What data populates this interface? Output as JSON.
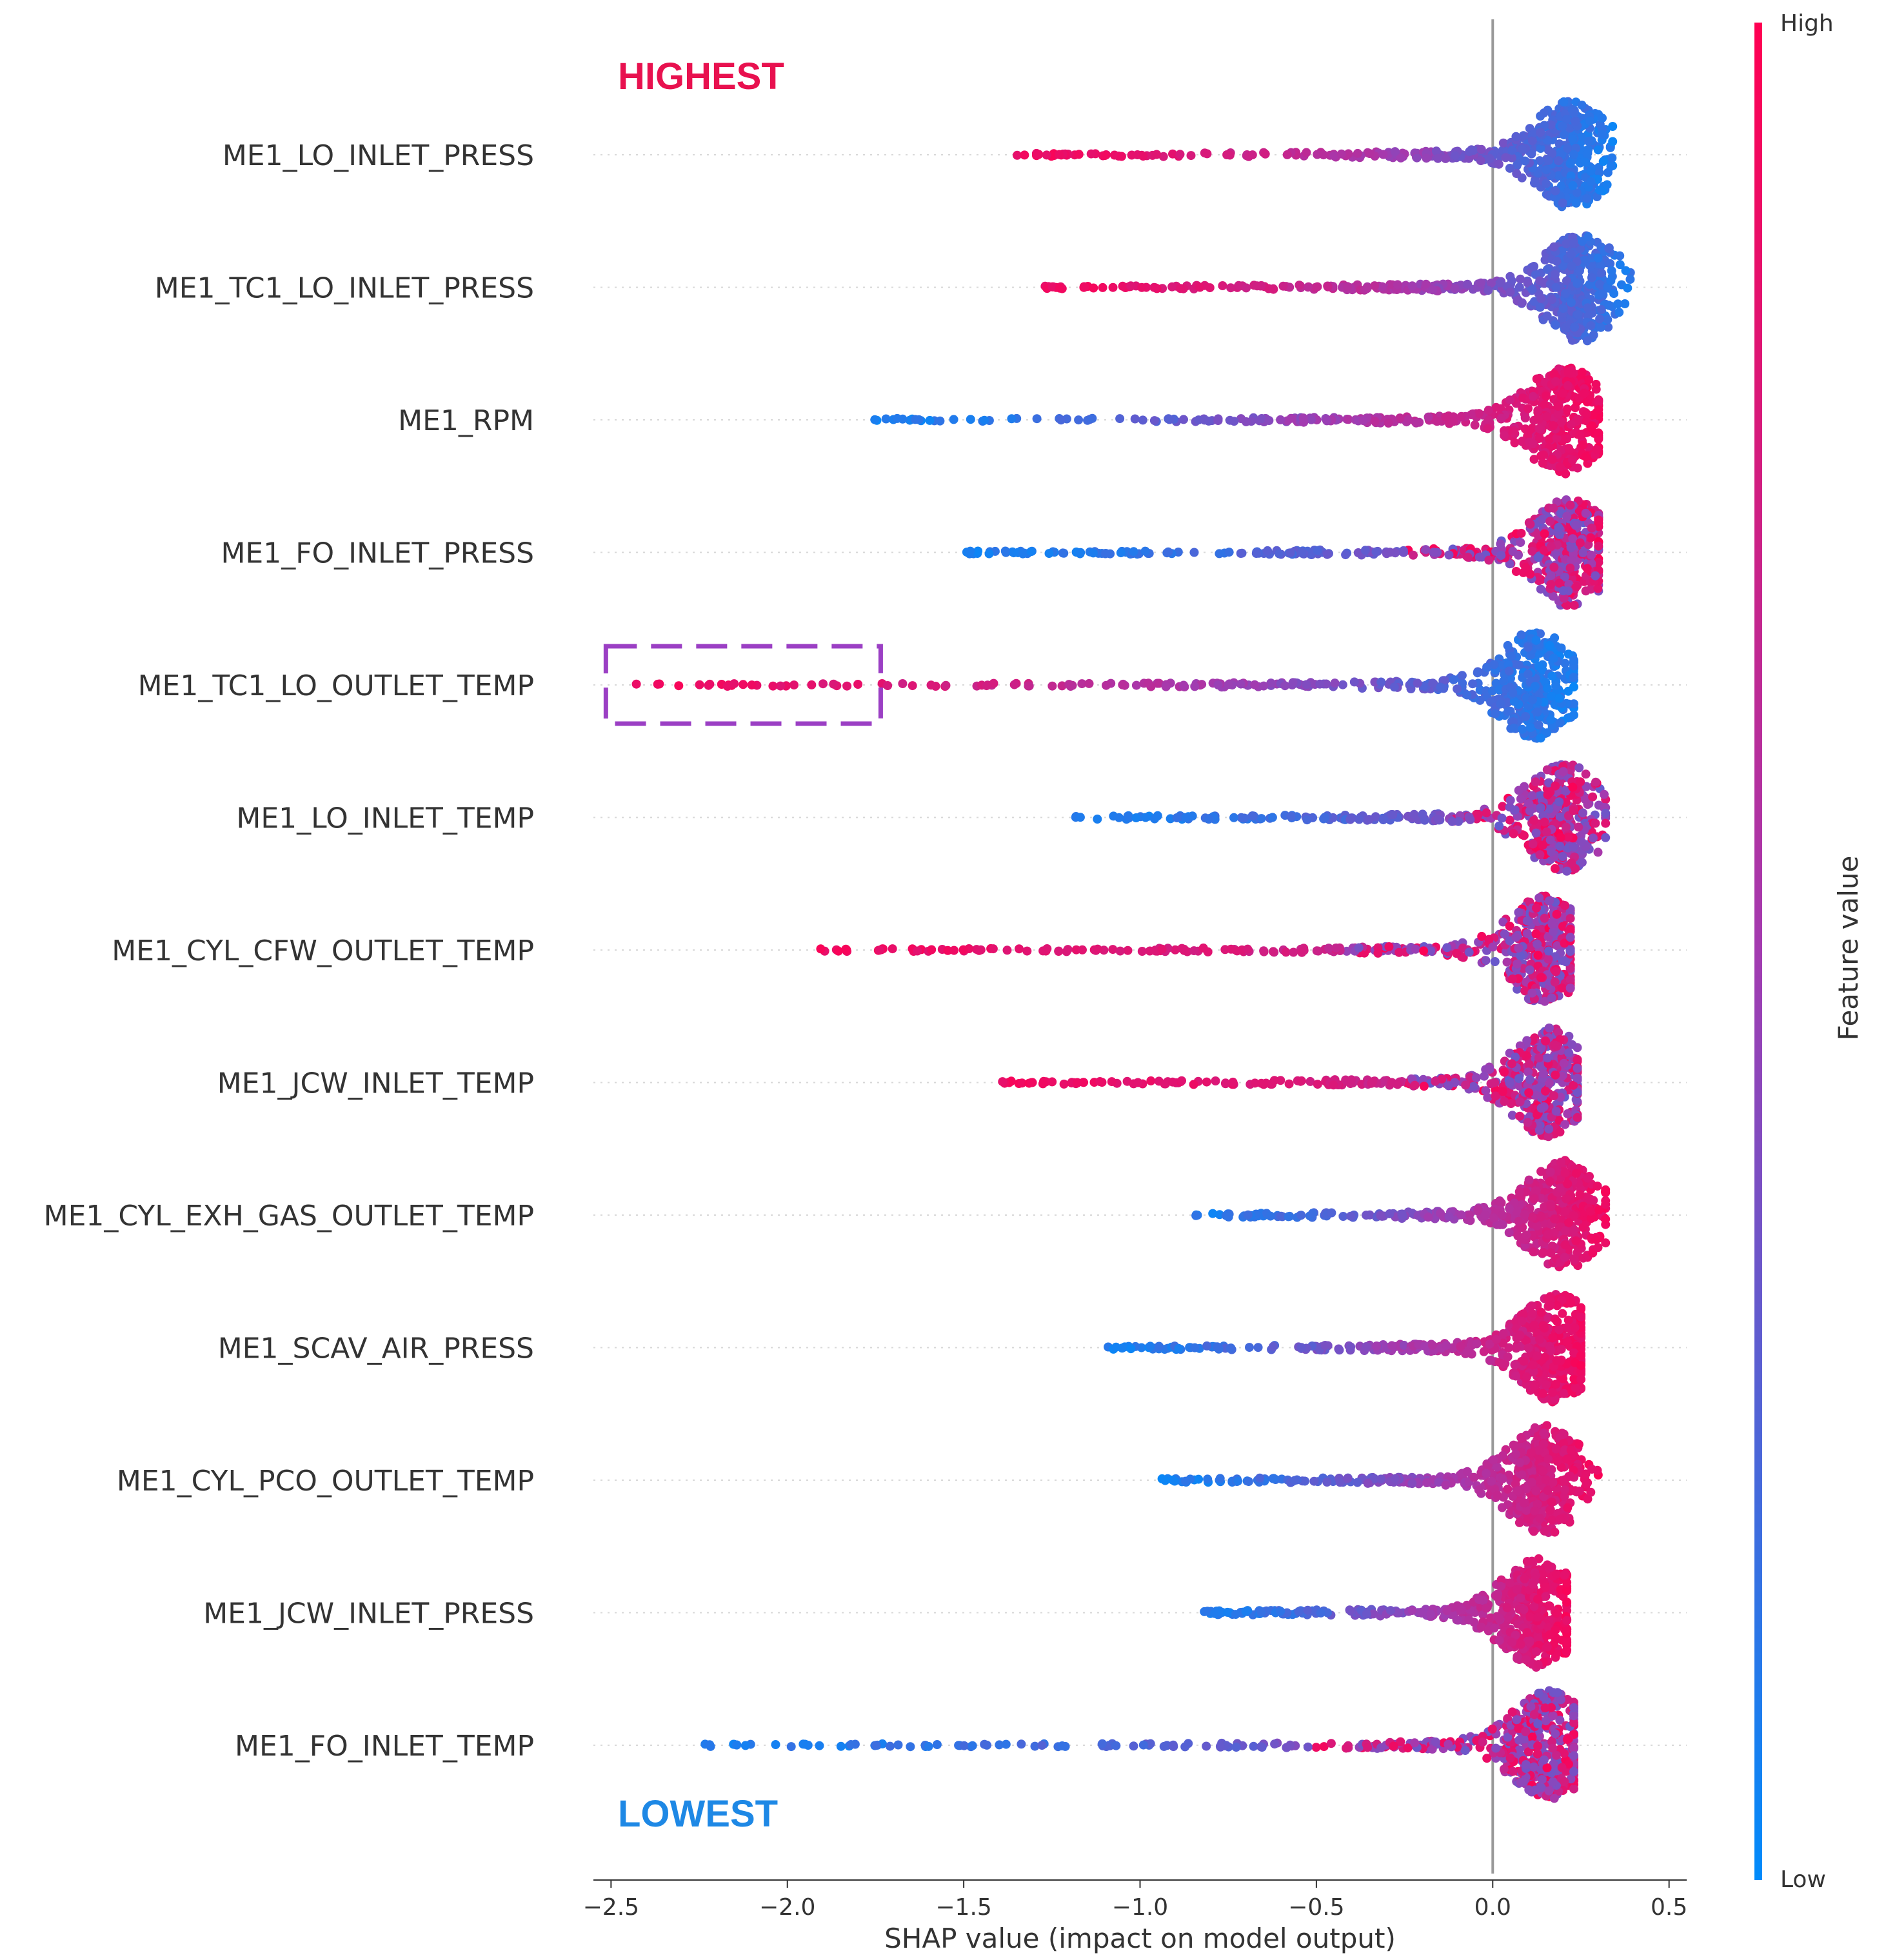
{
  "chart_data": {
    "type": "scatter",
    "subtype": "shap-beeswarm",
    "xlabel": "SHAP value (impact on model output)",
    "xlim": [
      -2.55,
      0.55
    ],
    "xticks": [
      -2.5,
      -2.0,
      -1.5,
      -1.0,
      -0.5,
      0.0,
      0.5
    ],
    "xtick_labels": [
      "−2.5",
      "−2.0",
      "−1.5",
      "−1.0",
      "−0.5",
      "0.0",
      "0.5"
    ],
    "zero_line": 0.0,
    "colorbar": {
      "title": "Feature value",
      "high_label": "High",
      "low_label": "Low",
      "high_color": "#ff0052",
      "low_color": "#008bfb"
    },
    "annotations": {
      "top": {
        "text": "HIGHEST",
        "color": "#e8114f"
      },
      "bottom": {
        "text": "LOWEST",
        "color": "#1e88e5"
      },
      "highlight_box": {
        "feature": "ME1_TC1_LO_OUTLET_TEMP",
        "x_range": [
          -2.5,
          -1.75
        ],
        "color": "#9b3fc4"
      }
    },
    "features": [
      {
        "name": "ME1_LO_INLET_PRESS",
        "min": -1.36,
        "max": 0.34,
        "left_color": "high",
        "right_color": "low",
        "peak": 0.22
      },
      {
        "name": "ME1_TC1_LO_INLET_PRESS",
        "min": -1.27,
        "max": 0.44,
        "left_color": "high",
        "right_color": "low",
        "peak": 0.25
      },
      {
        "name": "ME1_RPM",
        "min": -1.76,
        "max": 0.3,
        "left_color": "low",
        "right_color": "high",
        "peak": 0.2
      },
      {
        "name": "ME1_FO_INLET_PRESS",
        "min": -1.52,
        "max": 0.3,
        "left_color": "low",
        "right_color": "mixed",
        "peak": 0.22
      },
      {
        "name": "ME1_TC1_LO_OUTLET_TEMP",
        "min": -2.44,
        "max": 0.23,
        "left_color": "high",
        "right_color": "low",
        "peak": 0.12
      },
      {
        "name": "ME1_LO_INLET_TEMP",
        "min": -1.19,
        "max": 0.32,
        "left_color": "low",
        "right_color": "mixed",
        "peak": 0.2
      },
      {
        "name": "ME1_CYL_CFW_OUTLET_TEMP",
        "min": -1.92,
        "max": 0.22,
        "left_color": "high",
        "right_color": "mixed",
        "peak": 0.15
      },
      {
        "name": "ME1_JCW_INLET_TEMP",
        "min": -1.39,
        "max": 0.24,
        "left_color": "high",
        "right_color": "mixed",
        "peak": 0.16
      },
      {
        "name": "ME1_CYL_EXH_GAS_OUTLET_TEMP",
        "min": -0.89,
        "max": 0.32,
        "left_color": "low",
        "right_color": "high",
        "peak": 0.2
      },
      {
        "name": "ME1_SCAV_AIR_PRESS",
        "min": -1.11,
        "max": 0.25,
        "left_color": "low",
        "right_color": "high",
        "peak": 0.18
      },
      {
        "name": "ME1_CYL_PCO_OUTLET_TEMP",
        "min": -0.94,
        "max": 0.3,
        "left_color": "low",
        "right_color": "high",
        "peak": 0.15
      },
      {
        "name": "ME1_JCW_INLET_PRESS",
        "min": -0.84,
        "max": 0.21,
        "left_color": "low",
        "right_color": "high",
        "peak": 0.13
      },
      {
        "name": "ME1_FO_INLET_TEMP",
        "min": -2.29,
        "max": 0.23,
        "left_color": "low",
        "right_color": "mixed",
        "peak": 0.16
      }
    ]
  }
}
